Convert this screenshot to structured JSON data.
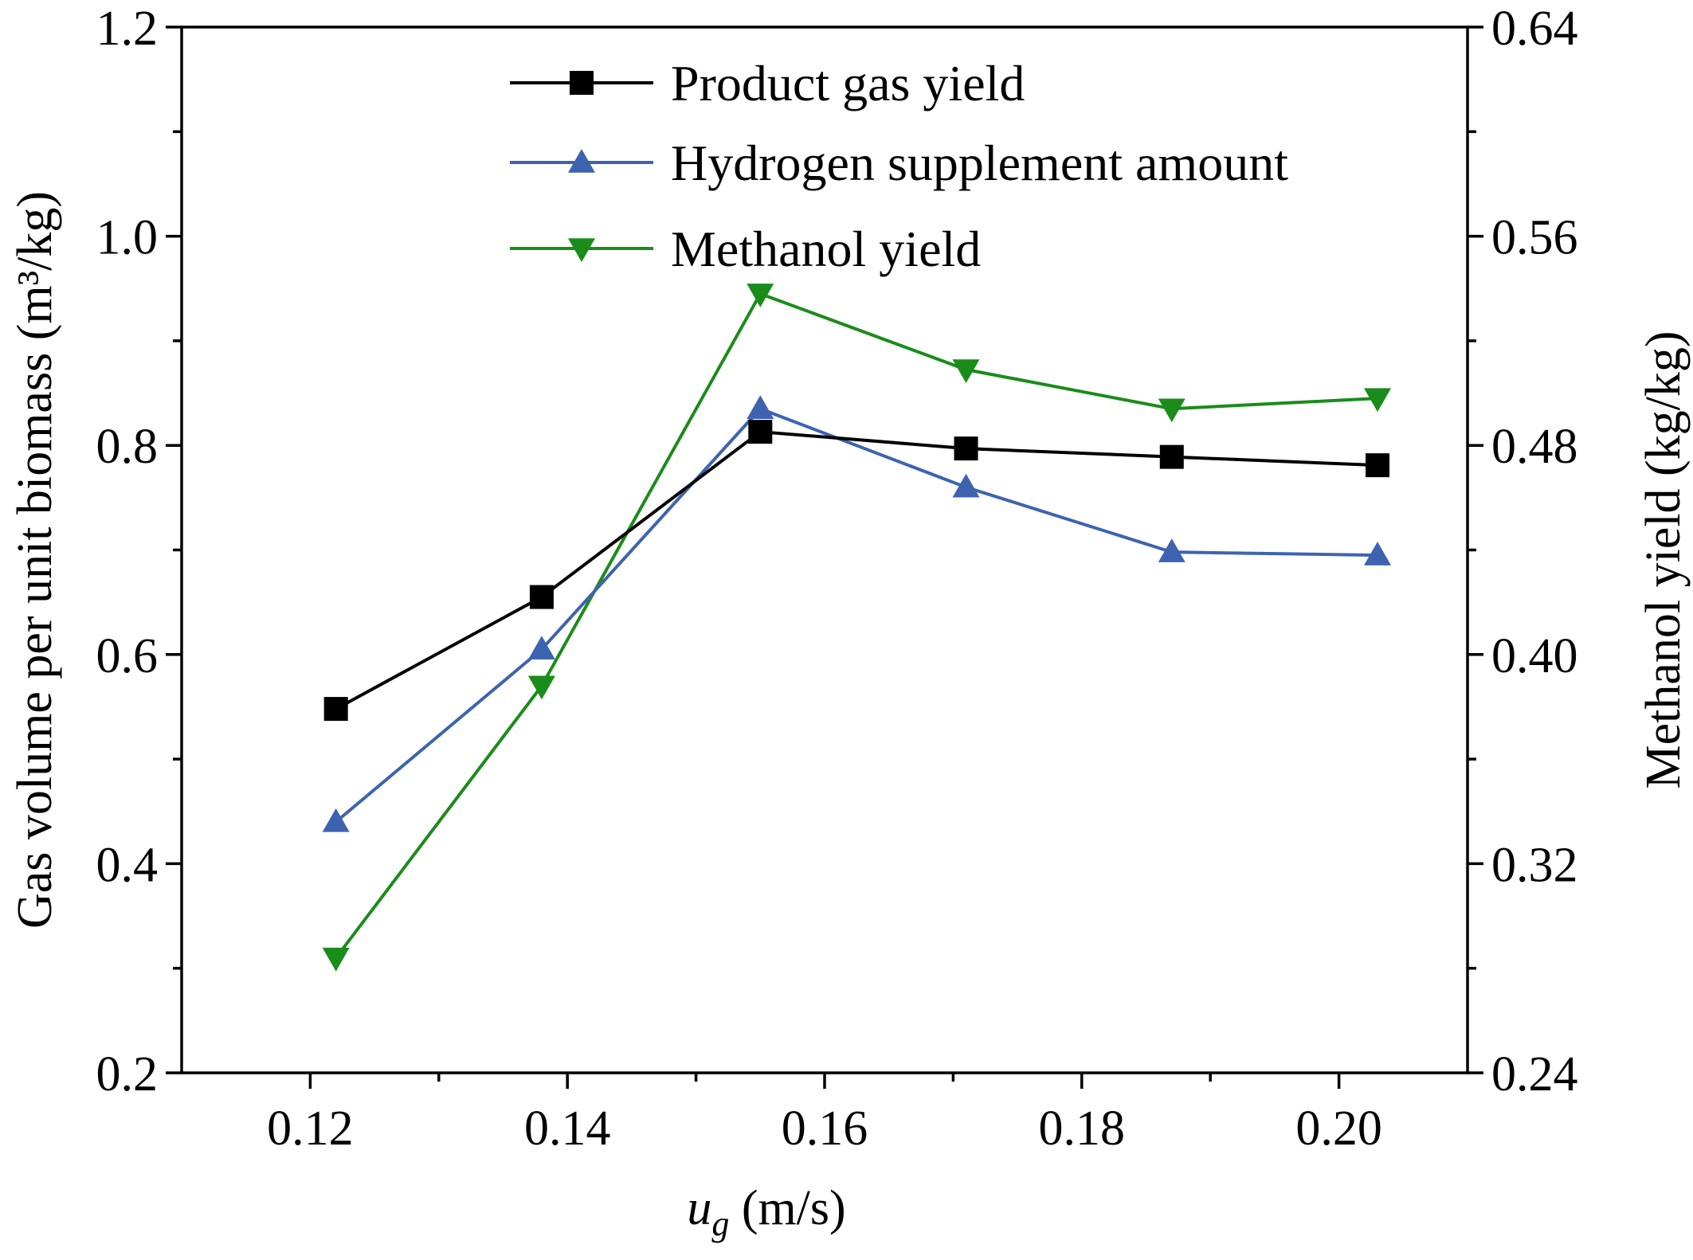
{
  "chart_data": {
    "type": "line",
    "x": [
      0.122,
      0.138,
      0.155,
      0.171,
      0.187,
      0.203
    ],
    "xlim": [
      0.11,
      0.21
    ],
    "xticks": [
      0.12,
      0.14,
      0.16,
      0.18,
      0.2
    ],
    "xtick_labels": [
      "0.12",
      "0.14",
      "0.16",
      "0.18",
      "0.20"
    ],
    "xlabel_symbol": "u",
    "xlabel_subscript": "g",
    "xlabel_unit": " (m/s)",
    "ylim": [
      0.2,
      1.2
    ],
    "yticks": [
      0.2,
      0.4,
      0.6,
      0.8,
      1.0,
      1.2
    ],
    "ytick_labels": [
      "0.2",
      "0.4",
      "0.6",
      "0.8",
      "1.0",
      "1.2"
    ],
    "ylabel": "Gas volume per unit biomass (m³/kg)",
    "y2lim": [
      0.24,
      0.64
    ],
    "y2ticks": [
      0.24,
      0.32,
      0.4,
      0.48,
      0.56,
      0.64
    ],
    "y2tick_labels": [
      "0.24",
      "0.32",
      "0.40",
      "0.48",
      "0.56",
      "0.64"
    ],
    "y2label": "Methanol yield (kg/kg)",
    "legend_position": "top-right",
    "series": [
      {
        "name": "Product gas yield",
        "axis": "left",
        "marker": "square",
        "color": "#000000",
        "values": [
          0.548,
          0.655,
          0.813,
          0.797,
          0.789,
          0.781
        ]
      },
      {
        "name": "Hydrogen supplement amount",
        "axis": "left",
        "marker": "triangle-up",
        "color": "#3d63b0",
        "values": [
          0.44,
          0.605,
          0.835,
          0.76,
          0.698,
          0.695
        ]
      },
      {
        "name": "Methanol yield",
        "axis": "right",
        "marker": "triangle-down",
        "color": "#1a8c1a",
        "values": [
          0.284,
          0.388,
          0.538,
          0.509,
          0.494,
          0.498
        ]
      }
    ]
  }
}
